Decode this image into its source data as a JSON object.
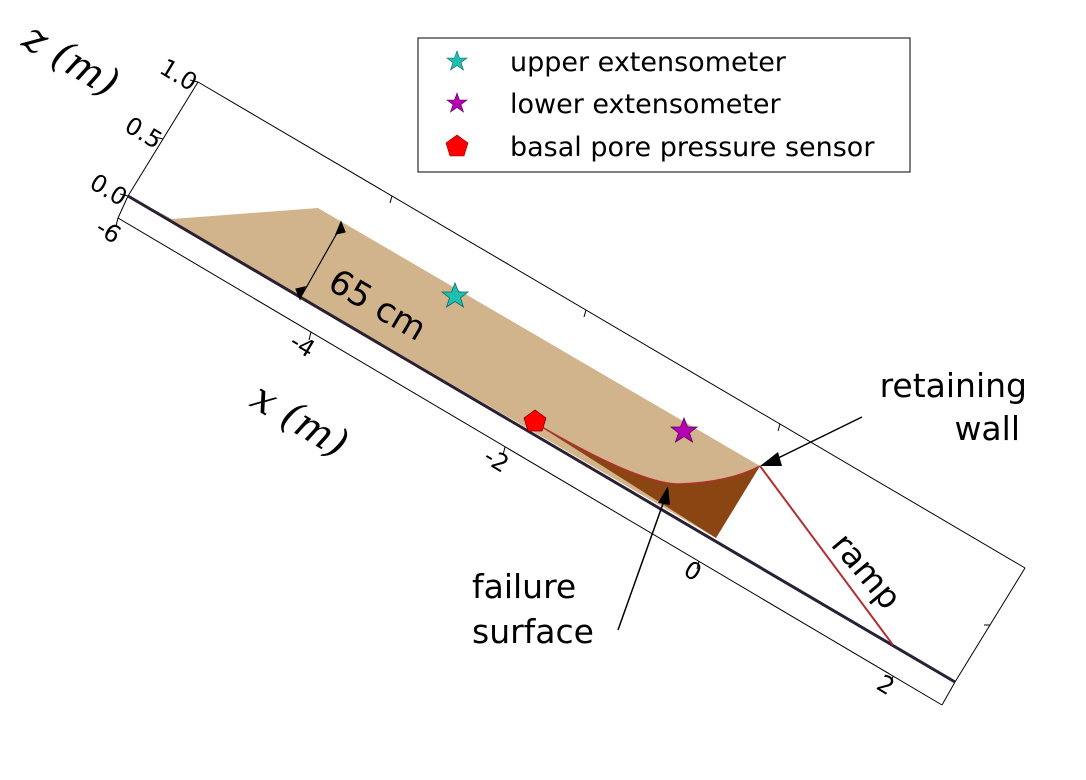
{
  "axes": {
    "z_label": "z (m)",
    "x_label": "x (m)",
    "z_ticks": [
      "1.0",
      "0.5",
      "0.0"
    ],
    "x_ticks": [
      "-6",
      "-4",
      "-2",
      "0",
      "2"
    ]
  },
  "legend": {
    "items": [
      {
        "label": "upper extensometer",
        "symbol": "star",
        "color": "#1fbfb0"
      },
      {
        "label": "lower extensometer",
        "symbol": "star",
        "color": "#b300b3"
      },
      {
        "label": "basal pore pressure sensor",
        "symbol": "pentagon",
        "color": "#ff0000"
      }
    ]
  },
  "annotations": {
    "thickness": "65 cm",
    "retaining_wall_line1": "retaining",
    "retaining_wall_line2": "wall",
    "failure_surface_line1": "failure",
    "failure_surface_line2": "surface",
    "ramp": "ramp"
  },
  "colors": {
    "sand": "#d2b48c",
    "failed_mass": "#8b4513",
    "failure_curve": "#b03030",
    "bed": "#2a2033",
    "ramp_line": "#b03030"
  }
}
